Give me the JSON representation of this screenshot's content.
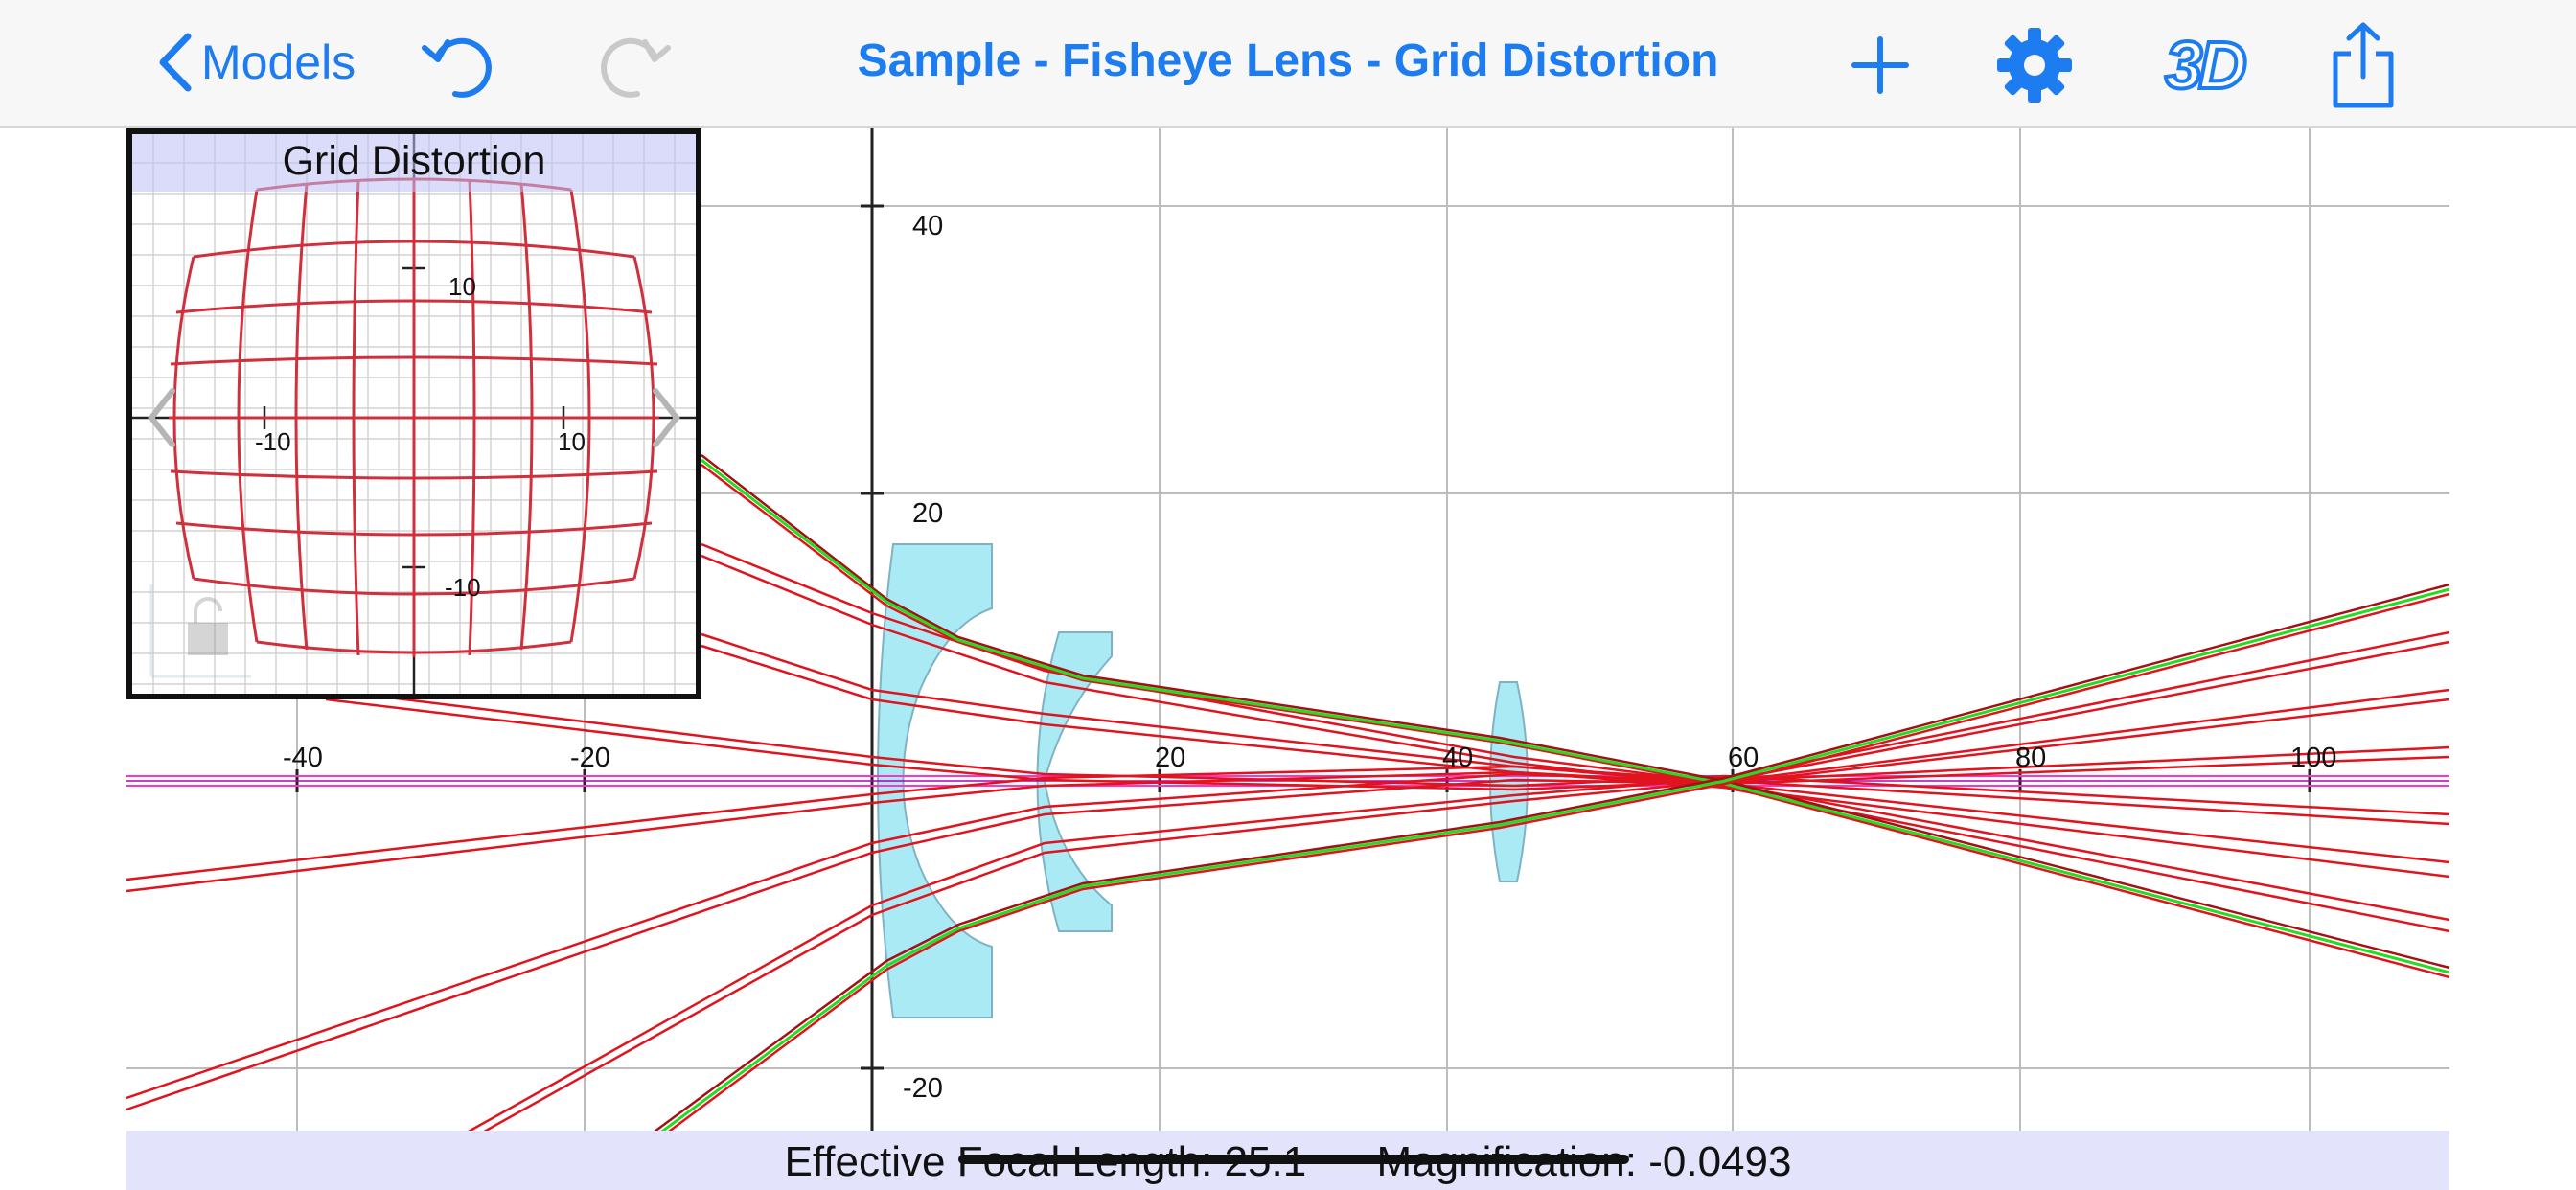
{
  "toolbar": {
    "back_label": "Models",
    "title": "Sample - Fisheye Lens - Grid Distortion",
    "icons": [
      "back-chevron-icon",
      "undo-icon",
      "redo-icon",
      "add-icon",
      "gear-icon",
      "3d-icon",
      "share-icon"
    ],
    "three_d_label": "3D",
    "accent": "#1c7cf0"
  },
  "inset": {
    "title": "Grid Distortion",
    "x_ticks": [
      "-10",
      "10"
    ],
    "y_ticks": [
      "10",
      "-10"
    ]
  },
  "plot": {
    "x_ticks": [
      "-40",
      "-20",
      "20",
      "40",
      "60",
      "80",
      "100"
    ],
    "y_ticks": [
      "40",
      "20",
      "-20"
    ],
    "ray_color": "#e0141e",
    "chief_ray_color": "#22dd22",
    "axis_color": "#ff33cc",
    "lens_color": "#aaeaf5"
  },
  "status": {
    "text": "Effective Focal Length: 25.1      Magnification: -0.0493"
  }
}
